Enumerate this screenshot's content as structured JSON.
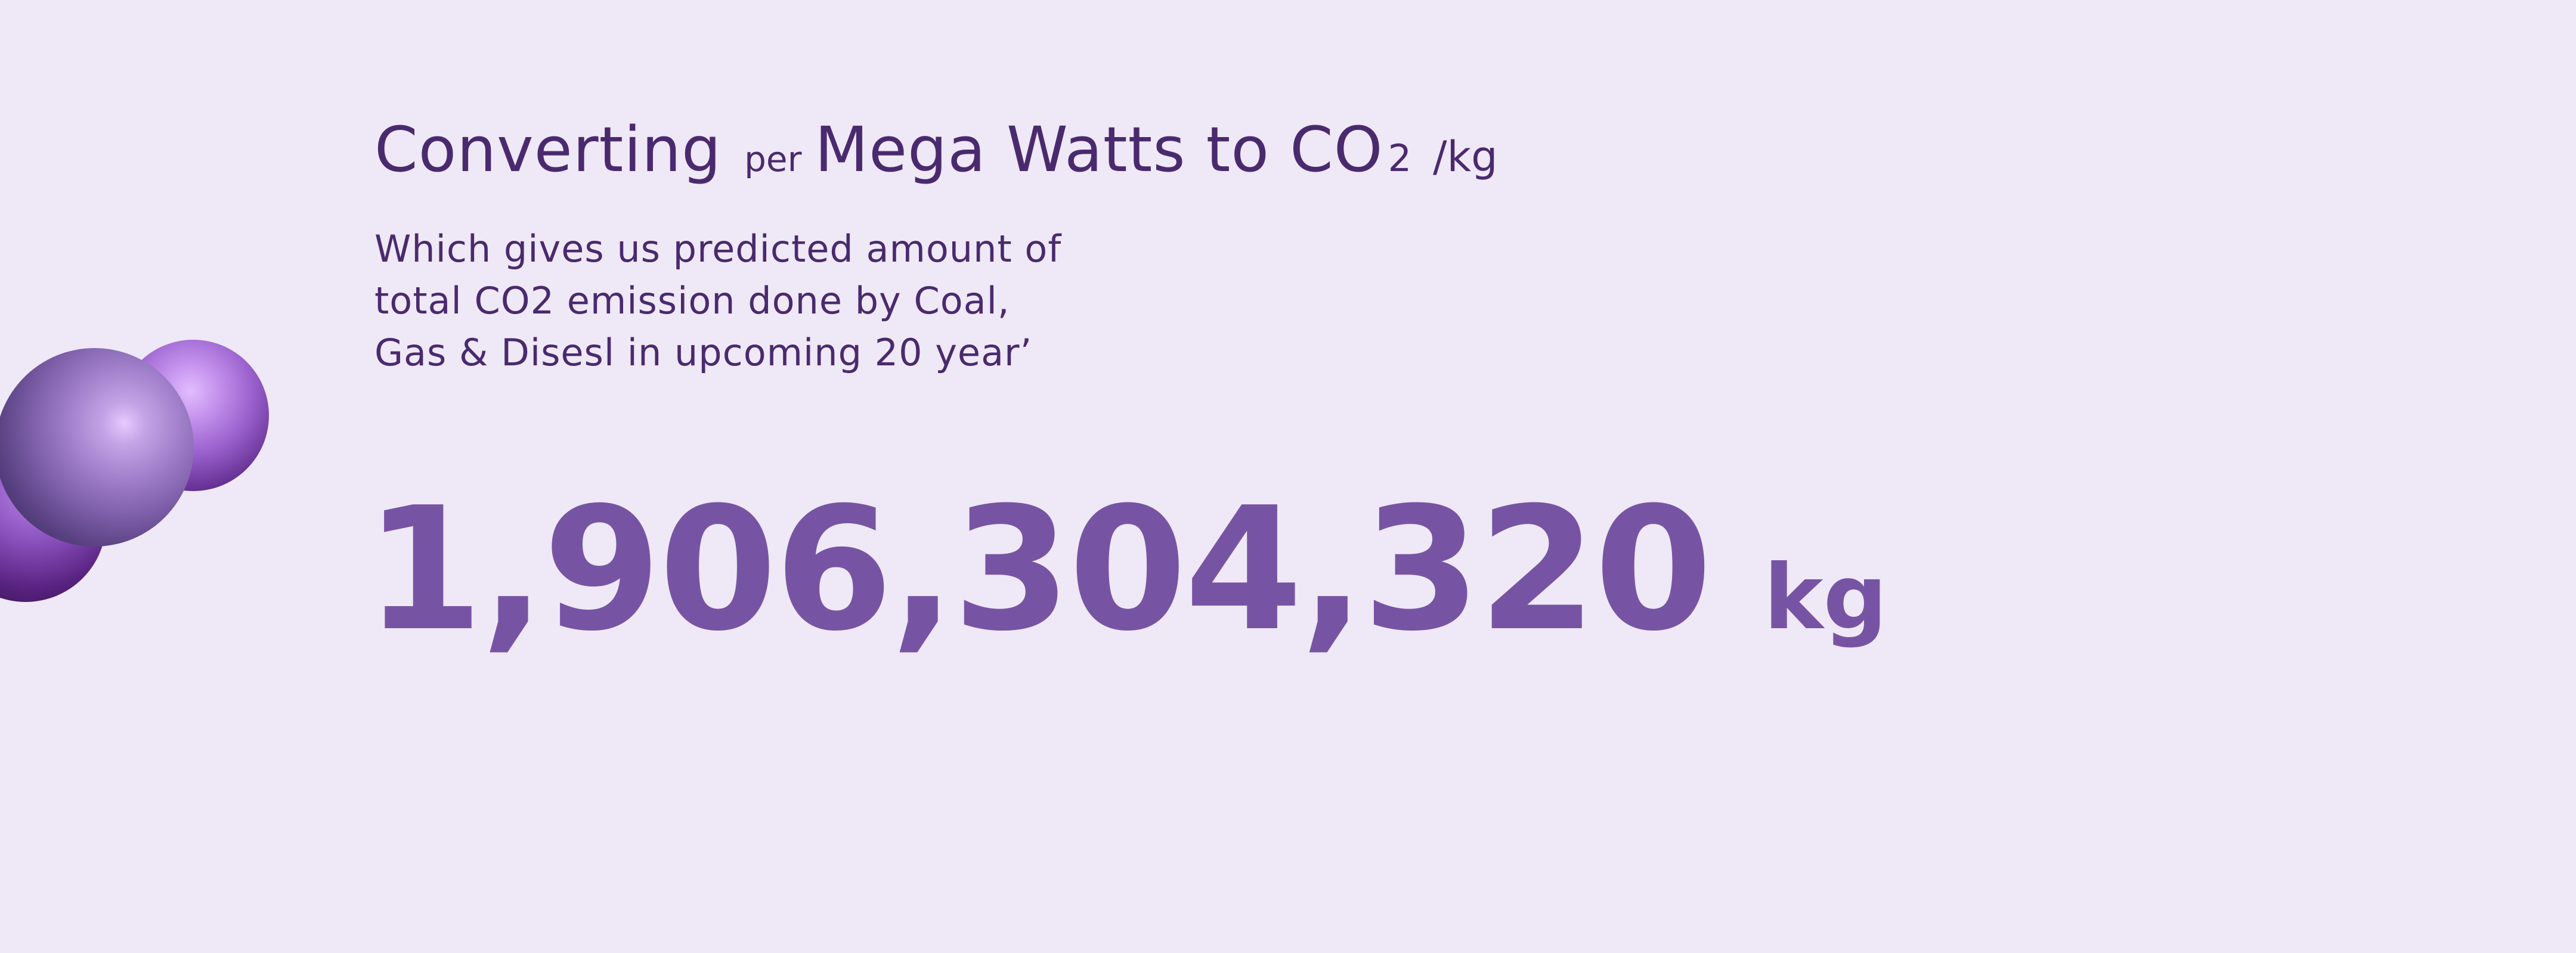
{
  "heading": {
    "part1": "Converting",
    "part2": "per",
    "part3": "Mega Watts to CO",
    "subscript": "2",
    "unit": "/kg"
  },
  "description": {
    "lines": [
      "Which gives us predicted amount of",
      "total CO2 emission done by Coal,",
      "Gas & Disesl in upcoming 20 year’"
    ]
  },
  "result": {
    "value": "1,906,304,320",
    "unit": "kg"
  },
  "colors": {
    "background": "#efe8f6",
    "heading_text": "#4a2a6e",
    "value_text": "#7754a3",
    "sphere_purple": "#9c63cf"
  }
}
